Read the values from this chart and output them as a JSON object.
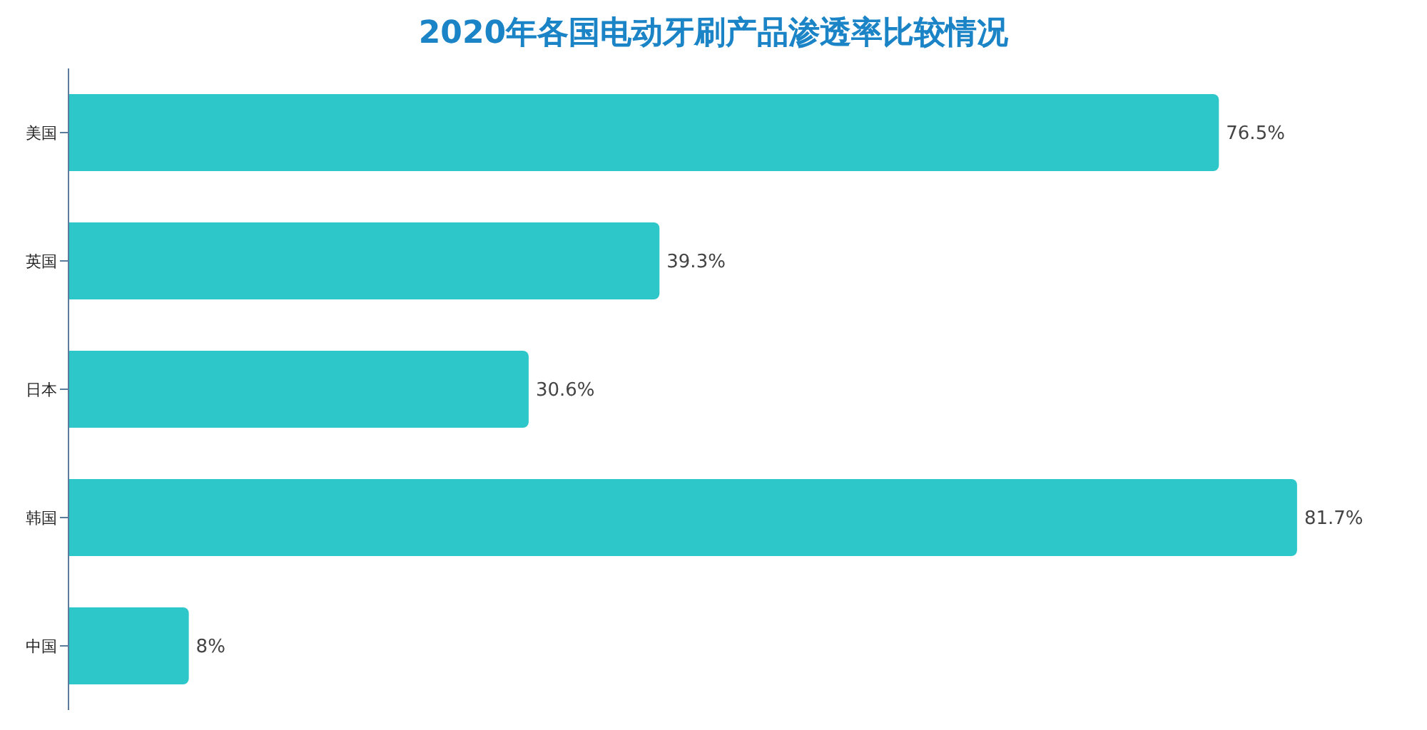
{
  "chart_data": {
    "type": "bar",
    "orientation": "horizontal",
    "title": "2020年各国电动牙刷产品渗透率比较情况",
    "categories": [
      "美国",
      "英国",
      "日本",
      "韩国",
      "中国"
    ],
    "values": [
      76.5,
      39.3,
      30.6,
      81.7,
      8
    ],
    "value_labels": [
      "76.5%",
      "39.3%",
      "30.6%",
      "81.7%",
      "8%"
    ],
    "color": "#2ec7c9",
    "tick_labels": "y"
  }
}
